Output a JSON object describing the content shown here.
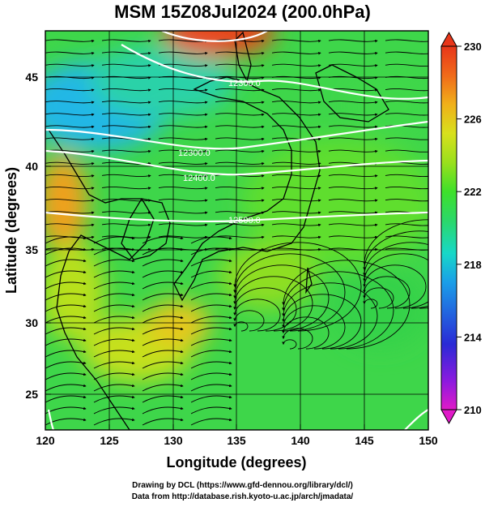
{
  "title": "MSM 15Z08Jul2024 (200.0hPa)",
  "xaxis": {
    "label": "Longitude (degrees)",
    "ticks": [
      "120",
      "125",
      "130",
      "135",
      "140",
      "145",
      "150"
    ]
  },
  "yaxis": {
    "label": "Latitude  (degrees)",
    "ticks": [
      "25",
      "30",
      "35",
      "40",
      "45"
    ]
  },
  "colorbar": {
    "ticks": [
      "210",
      "214",
      "218",
      "222",
      "226",
      "230"
    ],
    "colors": [
      "#e01ac8",
      "#8b1adf",
      "#2a2ad6",
      "#1a9ee8",
      "#17d8c8",
      "#2bd86a",
      "#3ee02a",
      "#9ae01c",
      "#d8e01c",
      "#f0b01a",
      "#f06a1a",
      "#e8361a"
    ]
  },
  "contour_labels": [
    "12300.0",
    "12300.0",
    "12400.0",
    "12500.0"
  ],
  "credits": {
    "line1": "Drawing by DCL (https://www.gfd-dennou.org/library/dcl/)",
    "line2": "Data from http://database.rish.kyoto-u.ac.jp/arch/jmadata/"
  }
}
